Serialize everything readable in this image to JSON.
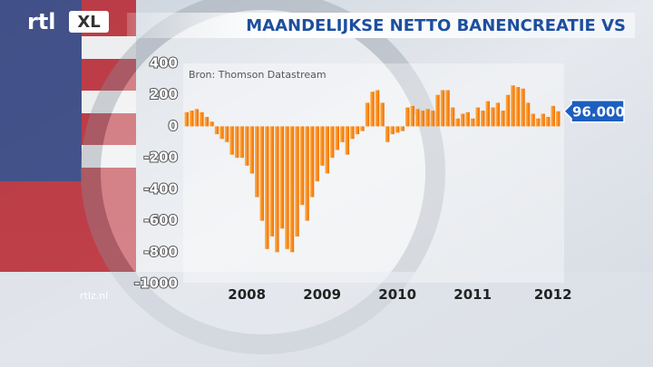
{
  "branding": {
    "logo": "rtl",
    "logo_badge": "XL",
    "site": "rtlz.nl"
  },
  "chart_data": {
    "type": "bar",
    "title": "MAANDELIJKSE NETTO BANENCREATIE VS",
    "source": "Bron: Thomson Datastream",
    "categories": [
      null,
      null,
      null,
      null,
      null,
      null,
      null,
      null,
      null,
      null,
      null,
      null,
      "2008",
      null,
      null,
      null,
      null,
      null,
      null,
      null,
      null,
      null,
      null,
      null,
      null,
      null,
      null,
      "2009",
      null,
      null,
      null,
      null,
      null,
      null,
      null,
      null,
      null,
      null,
      null,
      null,
      null,
      null,
      "2010",
      null,
      null,
      null,
      null,
      null,
      null,
      null,
      null,
      null,
      null,
      null,
      null,
      null,
      null,
      "2011",
      null,
      null,
      null,
      null,
      null,
      null,
      null,
      null,
      null,
      null,
      null,
      null,
      null,
      null,
      null,
      "2012",
      null
    ],
    "values": [
      90,
      100,
      110,
      90,
      60,
      30,
      -50,
      -80,
      -100,
      -180,
      -200,
      -200,
      -250,
      -300,
      -450,
      -600,
      -780,
      -700,
      -800,
      -650,
      -780,
      -800,
      -700,
      -500,
      -600,
      -450,
      -350,
      -250,
      -300,
      -200,
      -150,
      -100,
      -180,
      -80,
      -50,
      -30,
      150,
      220,
      230,
      150,
      -100,
      -50,
      -40,
      -30,
      120,
      130,
      110,
      100,
      110,
      100,
      200,
      230,
      230,
      120,
      50,
      80,
      90,
      50,
      120,
      100,
      160,
      120,
      150,
      100,
      200,
      260,
      250,
      240,
      150,
      80,
      50,
      80,
      60,
      130,
      96
    ],
    "value_labels": [
      null,
      null,
      null,
      null,
      null,
      null,
      null,
      null,
      null,
      null,
      null,
      null,
      null,
      null,
      null,
      null,
      null,
      null,
      null,
      null,
      null,
      null,
      null,
      null,
      null,
      null,
      null,
      null,
      null,
      null,
      null,
      null,
      null,
      null,
      null,
      null,
      null,
      null,
      null,
      null,
      null,
      null,
      null,
      null,
      null,
      null,
      null,
      null,
      null,
      null,
      null,
      null,
      null,
      null,
      null,
      null,
      null,
      null,
      null,
      null,
      null,
      null,
      null,
      null,
      null,
      null,
      null,
      null,
      null,
      null,
      null,
      null,
      null,
      null,
      "96.000"
    ],
    "color": "#f07a10",
    "ylim": [
      -1000,
      400
    ],
    "yticks": [
      400,
      200,
      0,
      -200,
      -400,
      -600,
      -800,
      -1000
    ]
  }
}
